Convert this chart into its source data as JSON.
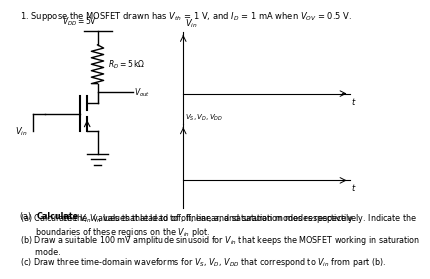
{
  "title": "1. Suppose the MOSFET drawn has $V_{th}$ = 1 V, and $I_D$ = 1 mA when $V_{OV}$ = 0.5 V.",
  "title_fontsize": 6.0,
  "circuit_vdd": "$V_{DD} = 5\\mathrm{V}$",
  "circuit_rd": "$R_D = 5\\,\\mathrm{k\\Omega}$",
  "circuit_vout": "$V_{out}$",
  "circuit_vin": "$V_{in}$",
  "plot1_ylabel": "$V_{in}$",
  "plot2_ylabel": "$V_S, V_D, V_{DD}$",
  "plot_xlabel": "$t$",
  "qa_bold": "(a) ",
  "qa_bold_word": "Calculate",
  "qa_rest": " the $V_{in}$ values that lead to off, linear, and saturation modes respectively. ",
  "qa_bold2": "Indicate",
  "qa_rest2": " the\n       boundaries of these regions on the $V_{in}$ plot.",
  "qb_bold": "(b) ",
  "qb_bold_word": "Draw",
  "qb_rest": " a suitable 100 mV amplitude sinusoid for $V_{in}$ that keeps the MOSFET working in saturation\n       mode.",
  "qc_bold": "(c) ",
  "qc_bold_word": "Draw",
  "qc_rest": " three time-domain waveforms for $V_S$, $V_D$, $V_{DD}$ that correspond to $V_{in}$ from part (b).",
  "bg_color": "#ffffff",
  "text_color": "#000000",
  "q_fontsize": 5.8,
  "label_fontsize": 5.5
}
